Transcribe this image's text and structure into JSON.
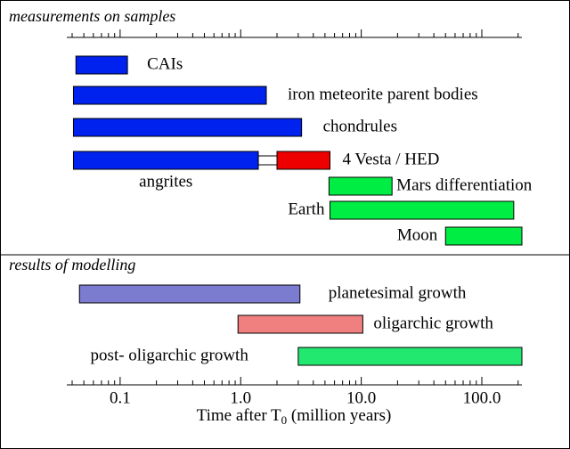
{
  "chart_data": {
    "type": "range-bar",
    "xscale": "log",
    "xlim": [
      0.038,
      215
    ],
    "xticks": [
      0.1,
      {
        "value": 1,
        "label": "1.0"
      },
      {
        "value": 10,
        "label": "10.0"
      },
      {
        "value": 100,
        "label": "100.0"
      }
    ],
    "xminor": [
      0.04,
      0.05,
      0.06,
      0.07,
      0.08,
      0.09,
      0.2,
      0.3,
      0.4,
      0.5,
      0.6,
      0.7,
      0.8,
      0.9,
      2,
      3,
      4,
      5,
      6,
      7,
      8,
      9,
      20,
      30,
      40,
      50,
      60,
      70,
      80,
      90,
      200
    ],
    "xlabel": [
      "Time after T",
      "0",
      " (million years)"
    ],
    "panels": [
      {
        "title": "measurements on samples",
        "bars": [
          {
            "label": "CAIs",
            "start": 0.043,
            "end": 0.115,
            "color": "#0022ee"
          },
          {
            "label": "iron meteorite parent bodies",
            "start": 0.041,
            "end": 1.63,
            "color": "#0022ee"
          },
          {
            "label": "chondrules",
            "start": 0.041,
            "end": 3.2,
            "color": "#0022ee"
          },
          {
            "label": "angrites",
            "start": 0.041,
            "end": 1.4,
            "color": "#0022ee"
          },
          {
            "label": "4 Vesta / HED",
            "start": 2.0,
            "end": 5.5,
            "color": "#ee0000"
          },
          {
            "label": "Mars differentiation",
            "start": 5.4,
            "end": 18,
            "color": "#00ee44"
          },
          {
            "label": "Earth",
            "start": 5.5,
            "end": 184,
            "color": "#00ee44"
          },
          {
            "label": "Moon",
            "start": 50,
            "end": 215,
            "color": "#00ee44"
          }
        ]
      },
      {
        "title": "results of modelling",
        "bars": [
          {
            "label": "planetesimal growth",
            "start": 0.046,
            "end": 3.1,
            "color": "#7b7bd0"
          },
          {
            "label": "oligarchic growth",
            "start": 0.95,
            "end": 10.3,
            "color": "#f08080"
          },
          {
            "label": "post- oligarchic growth",
            "start": 3.0,
            "end": 215,
            "color": "#22e870"
          }
        ]
      }
    ]
  }
}
